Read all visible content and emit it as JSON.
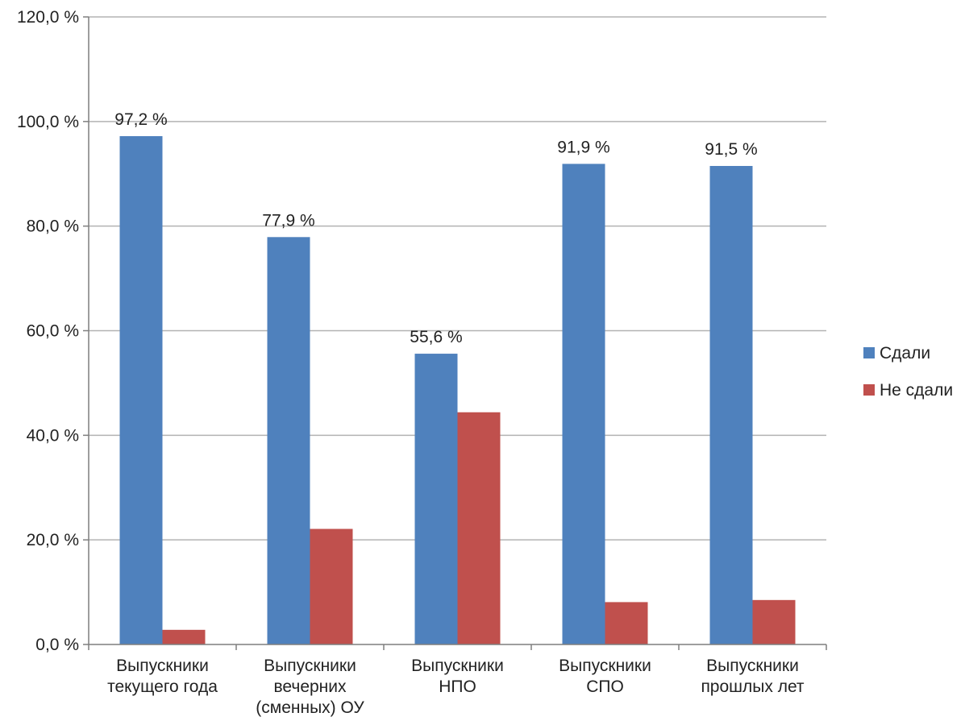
{
  "chart_data": {
    "type": "bar",
    "categories": [
      [
        "Выпускники",
        "текущего года"
      ],
      [
        "Выпускники",
        "вечерних",
        "(сменных) ОУ"
      ],
      [
        "Выпускники",
        "НПО"
      ],
      [
        "Выпускники",
        "СПО"
      ],
      [
        "Выпускники",
        "прошлых лет"
      ]
    ],
    "series": [
      {
        "name": "Сдали",
        "color": "#4f81bd",
        "values": [
          97.2,
          77.9,
          55.6,
          91.9,
          91.5
        ]
      },
      {
        "name": "Не сдали",
        "color": "#c0504d",
        "values": [
          2.8,
          22.1,
          44.4,
          8.1,
          8.5
        ]
      }
    ],
    "data_labels": {
      "series_index": 0,
      "texts": [
        "97,2 %",
        "77,9 %",
        "55,6 %",
        "91,9 %",
        "91,5 %"
      ]
    },
    "ylim": [
      0,
      120
    ],
    "yticks": [
      {
        "value": 0,
        "label": "0,0 %"
      },
      {
        "value": 20,
        "label": "20,0 %"
      },
      {
        "value": 40,
        "label": "40,0 %"
      },
      {
        "value": 60,
        "label": "60,0 %"
      },
      {
        "value": 80,
        "label": "80,0 %"
      },
      {
        "value": 100,
        "label": "100,0 %"
      },
      {
        "value": 120,
        "label": "120,0 %"
      }
    ],
    "grid": true,
    "legend_position": "right",
    "colors": {
      "axis": "#7f7f7f",
      "grid": "#b3b3b3"
    }
  }
}
